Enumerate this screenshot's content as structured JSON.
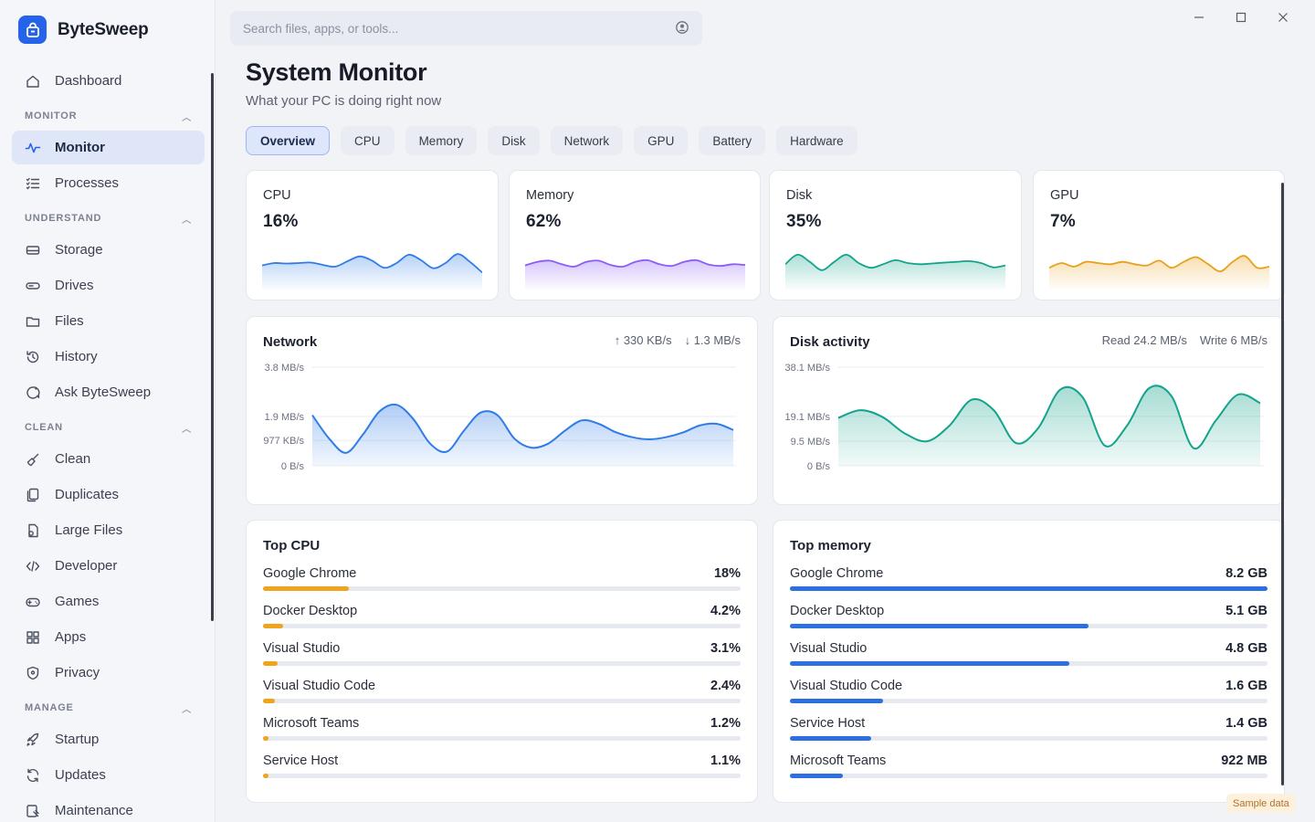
{
  "app": {
    "name": "ByteSweep"
  },
  "colors": {
    "accent": "#2563eb",
    "cpu": "#2f7ce8",
    "memory": "#8b5cf6",
    "disk": "#14a38b",
    "gpu": "#e8a11c",
    "bar_cpu": "#f0a31c",
    "bar_mem": "#2c6fe0"
  },
  "sidebar": {
    "items": [
      {
        "label": "Dashboard",
        "icon": "home-icon"
      },
      {
        "section": "MONITOR"
      },
      {
        "label": "Monitor",
        "icon": "pulse-icon",
        "active": true
      },
      {
        "label": "Processes",
        "icon": "list-icon"
      },
      {
        "section": "UNDERSTAND"
      },
      {
        "label": "Storage",
        "icon": "storage-icon"
      },
      {
        "label": "Drives",
        "icon": "drive-icon"
      },
      {
        "label": "Files",
        "icon": "folder-icon"
      },
      {
        "label": "History",
        "icon": "history-icon"
      },
      {
        "label": "Ask ByteSweep",
        "icon": "chat-icon"
      },
      {
        "section": "CLEAN"
      },
      {
        "label": "Clean",
        "icon": "broom-icon"
      },
      {
        "label": "Duplicates",
        "icon": "copy-icon"
      },
      {
        "label": "Large Files",
        "icon": "file-icon"
      },
      {
        "label": "Developer",
        "icon": "code-icon"
      },
      {
        "label": "Games",
        "icon": "gamepad-icon"
      },
      {
        "label": "Apps",
        "icon": "apps-icon"
      },
      {
        "label": "Privacy",
        "icon": "shield-icon"
      },
      {
        "section": "MANAGE"
      },
      {
        "label": "Startup",
        "icon": "rocket-icon"
      },
      {
        "label": "Updates",
        "icon": "refresh-icon"
      },
      {
        "label": "Maintenance",
        "icon": "wrench-icon"
      }
    ]
  },
  "search": {
    "placeholder": "Search files, apps, or tools..."
  },
  "header": {
    "title": "System Monitor",
    "subtitle": "What your PC is doing right now"
  },
  "tabs": [
    {
      "label": "Overview",
      "active": true
    },
    {
      "label": "CPU"
    },
    {
      "label": "Memory"
    },
    {
      "label": "Disk"
    },
    {
      "label": "Network"
    },
    {
      "label": "GPU"
    },
    {
      "label": "Battery"
    },
    {
      "label": "Hardware"
    }
  ],
  "mini_cards": [
    {
      "label": "CPU",
      "value": "16%",
      "color": "#2f7ce8",
      "spark": [
        0.4,
        0.5,
        0.48,
        0.5,
        0.52,
        0.42,
        0.35,
        0.58,
        0.78,
        0.6,
        0.3,
        0.5,
        0.85,
        0.62,
        0.28,
        0.5,
        0.88,
        0.55,
        0.1
      ]
    },
    {
      "label": "Memory",
      "value": "62%",
      "color": "#8b5cf6",
      "spark": [
        0.4,
        0.55,
        0.6,
        0.45,
        0.35,
        0.55,
        0.6,
        0.42,
        0.35,
        0.55,
        0.62,
        0.45,
        0.38,
        0.55,
        0.62,
        0.44,
        0.38,
        0.45,
        0.42
      ]
    },
    {
      "label": "Disk",
      "value": "35%",
      "color": "#14a38b",
      "spark": [
        0.45,
        0.85,
        0.55,
        0.2,
        0.55,
        0.85,
        0.5,
        0.3,
        0.45,
        0.62,
        0.5,
        0.45,
        0.48,
        0.52,
        0.55,
        0.58,
        0.5,
        0.32,
        0.4
      ]
    },
    {
      "label": "GPU",
      "value": "7%",
      "color": "#e8a11c",
      "spark": [
        0.3,
        0.5,
        0.35,
        0.55,
        0.5,
        0.45,
        0.55,
        0.45,
        0.4,
        0.6,
        0.3,
        0.55,
        0.75,
        0.45,
        0.15,
        0.55,
        0.8,
        0.3,
        0.35
      ]
    }
  ],
  "network": {
    "title": "Network",
    "upload": "330 KB/s",
    "download": "1.3 MB/s",
    "yticks": [
      {
        "label": "3.8 MB/s",
        "value": 3.8
      },
      {
        "label": "1.9 MB/s",
        "value": 1.9
      },
      {
        "label": "977 KB/s",
        "value": 0.977
      },
      {
        "label": "0 B/s",
        "value": 0
      }
    ],
    "ymax": 3.8,
    "series": [
      1.95,
      1.05,
      0.5,
      1.2,
      2.1,
      2.35,
      1.8,
      0.85,
      0.55,
      1.35,
      2.05,
      1.95,
      1.05,
      0.7,
      0.85,
      1.35,
      1.75,
      1.62,
      1.3,
      1.1,
      1.02,
      1.1,
      1.28,
      1.55,
      1.62,
      1.38
    ]
  },
  "disk_activity": {
    "title": "Disk activity",
    "read": "Read 24.2 MB/s",
    "write": "Write 6 MB/s",
    "yticks": [
      {
        "label": "38.1 MB/s",
        "value": 38.1
      },
      {
        "label": "19.1 MB/s",
        "value": 19.1
      },
      {
        "label": "9.5 MB/s",
        "value": 9.5
      },
      {
        "label": "0 B/s",
        "value": 0
      }
    ],
    "ymax": 38.1,
    "series": [
      18.5,
      21.5,
      18.8,
      12.5,
      9.5,
      15.5,
      25.5,
      21.5,
      8.8,
      14.5,
      29.5,
      26.5,
      7.8,
      15.5,
      30.0,
      27.0,
      6.8,
      17.5,
      27.5,
      24.2
    ]
  },
  "top_cpu": {
    "title": "Top CPU",
    "max": 18,
    "rows": [
      {
        "name": "Google Chrome",
        "value": "18%",
        "num": 18
      },
      {
        "name": "Docker Desktop",
        "value": "4.2%",
        "num": 4.2
      },
      {
        "name": "Visual Studio",
        "value": "3.1%",
        "num": 3.1
      },
      {
        "name": "Visual Studio Code",
        "value": "2.4%",
        "num": 2.4
      },
      {
        "name": "Microsoft Teams",
        "value": "1.2%",
        "num": 1.2
      },
      {
        "name": "Service Host",
        "value": "1.1%",
        "num": 1.1
      }
    ]
  },
  "top_memory": {
    "title": "Top memory",
    "rows": [
      {
        "name": "Google Chrome",
        "value": "8.2 GB",
        "fraction": 1.0
      },
      {
        "name": "Docker Desktop",
        "value": "5.1 GB",
        "fraction": 0.625
      },
      {
        "name": "Visual Studio",
        "value": "4.8 GB",
        "fraction": 0.585
      },
      {
        "name": "Visual Studio Code",
        "value": "1.6 GB",
        "fraction": 0.195
      },
      {
        "name": "Service Host",
        "value": "1.4 GB",
        "fraction": 0.17
      },
      {
        "name": "Microsoft Teams",
        "value": "922 MB",
        "fraction": 0.11
      }
    ]
  },
  "badge": {
    "label": "Sample data"
  }
}
